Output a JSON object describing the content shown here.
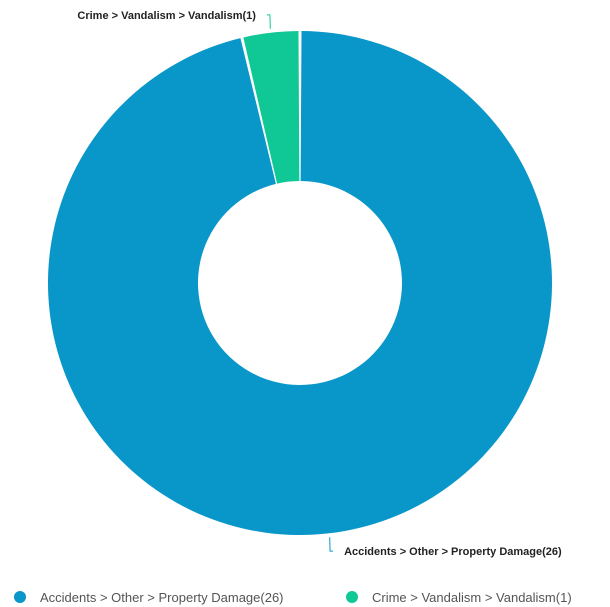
{
  "chart_data": {
    "type": "pie",
    "donut": true,
    "slices": [
      {
        "label": "Accidents > Other > Property Damage(26)",
        "value": 26,
        "color": "#0996c8"
      },
      {
        "label": "Crime > Vandalism > Vandalism(1)",
        "value": 1,
        "color": "#10c896"
      }
    ],
    "legend_position": "bottom"
  },
  "legend": {
    "items": [
      {
        "label": "Accidents > Other > Property Damage(26)",
        "color": "#0996c8"
      },
      {
        "label": "Crime > Vandalism > Vandalism(1)",
        "color": "#10c896"
      }
    ]
  }
}
